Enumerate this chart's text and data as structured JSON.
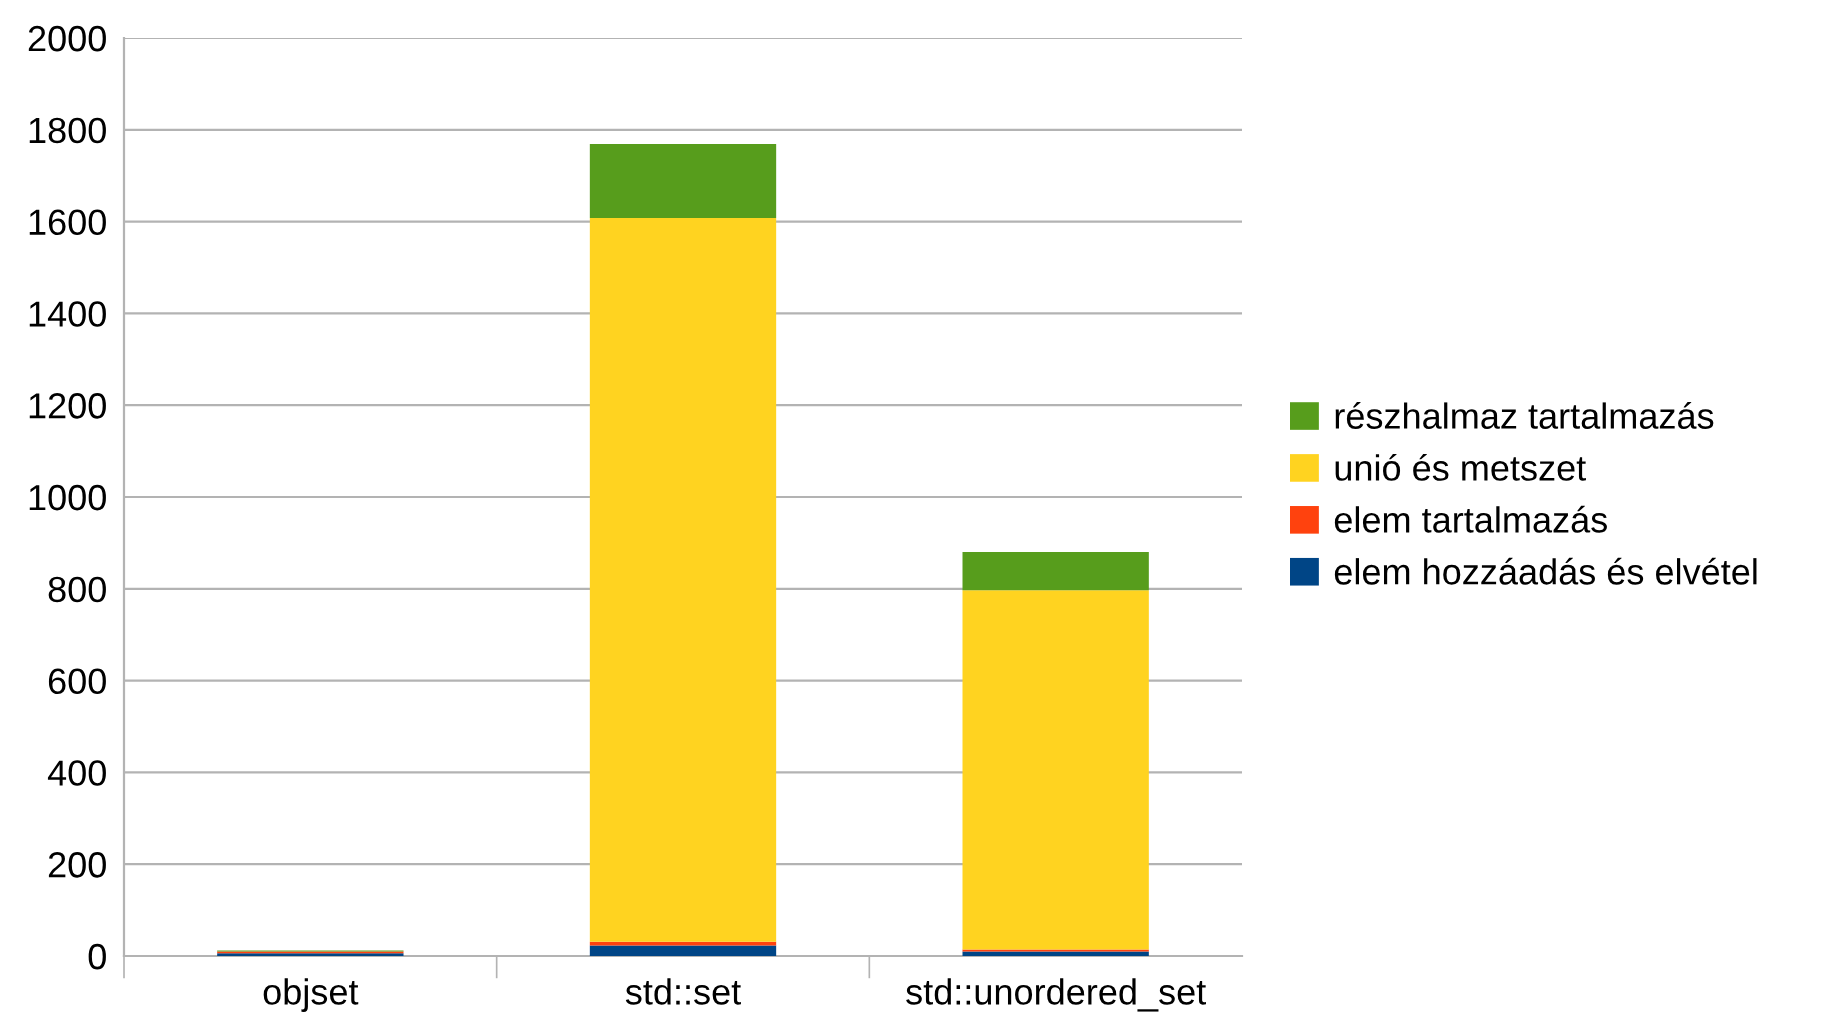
{
  "chart_data": {
    "type": "bar",
    "stacked": true,
    "categories": [
      "objset",
      "std::set",
      "std::unordered_set"
    ],
    "series": [
      {
        "name": "elem hozzáadás és elvétel",
        "color": "#004586",
        "values": [
          6,
          23,
          10
        ]
      },
      {
        "name": "elem tartalmazás",
        "color": "#ff420e",
        "values": [
          4,
          8,
          4
        ]
      },
      {
        "name": "unió és metszet",
        "color": "#ffd320",
        "values": [
          0,
          1577,
          783
        ]
      },
      {
        "name": "részhalmaz tartalmazás",
        "color": "#579d1c",
        "values": [
          2,
          161,
          83
        ]
      }
    ],
    "ylim": [
      0,
      2000
    ],
    "yticks": [
      0,
      200,
      400,
      600,
      800,
      1000,
      1200,
      1400,
      1600,
      1800,
      2000
    ],
    "grid": "y",
    "legend": "right"
  }
}
